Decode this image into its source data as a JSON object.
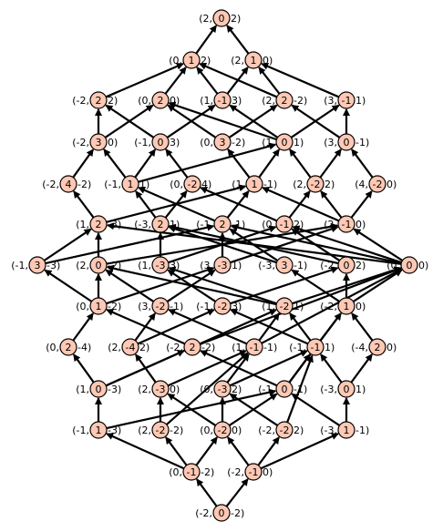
{
  "colors": {
    "node_fill": "#ffc8b4",
    "edge": "#000000",
    "background": "#ffffff"
  },
  "nodes": [
    {
      "id": "n00",
      "left": "(2,",
      "center": "0",
      "right": "2)"
    },
    {
      "id": "n01",
      "left": "(0,",
      "center": "1",
      "right": "2)"
    },
    {
      "id": "n02",
      "left": "(2,",
      "center": "1",
      "right": "0)"
    },
    {
      "id": "n03",
      "left": "(-2,",
      "center": "2",
      "right": "2)"
    },
    {
      "id": "n04",
      "left": "(0,",
      "center": "2",
      "right": "0)"
    },
    {
      "id": "n05",
      "left": "(1,",
      "center": "-1",
      "right": "3)"
    },
    {
      "id": "n06",
      "left": "(2,",
      "center": "2",
      "right": "-2)"
    },
    {
      "id": "n07",
      "left": "(3,",
      "center": "-1",
      "right": "1)"
    },
    {
      "id": "n08",
      "left": "(-2,",
      "center": "3",
      "right": "0)"
    },
    {
      "id": "n09",
      "left": "(-1,",
      "center": "0",
      "right": "3)"
    },
    {
      "id": "n10",
      "left": "(0,",
      "center": "3",
      "right": "-2)"
    },
    {
      "id": "n11",
      "left": "(1,",
      "center": "0",
      "right": "1)"
    },
    {
      "id": "n12",
      "left": "(3,",
      "center": "0",
      "right": "-1)"
    },
    {
      "id": "n13",
      "left": "(-2,",
      "center": "4",
      "right": "-2)"
    },
    {
      "id": "n14",
      "left": "(-1,",
      "center": "1",
      "right": "1)"
    },
    {
      "id": "n15",
      "left": "(0,",
      "center": "-2",
      "right": "4)"
    },
    {
      "id": "n16",
      "left": "(1,",
      "center": "1",
      "right": "-1)"
    },
    {
      "id": "n17",
      "left": "(2,",
      "center": "-2",
      "right": "2)"
    },
    {
      "id": "n18",
      "left": "(4,",
      "center": "-2",
      "right": "0)"
    },
    {
      "id": "n19",
      "left": "(1,",
      "center": "2",
      "right": "-3)"
    },
    {
      "id": "n20",
      "left": "(-3,",
      "center": "2",
      "right": "1)"
    },
    {
      "id": "n21",
      "left": "(-1,",
      "center": "2",
      "right": "-1)"
    },
    {
      "id": "n22",
      "left": "(0,",
      "center": "-1",
      "right": "2)"
    },
    {
      "id": "n23",
      "left": "(2,",
      "center": "-1",
      "right": "0)"
    },
    {
      "id": "n24",
      "left": "(-1,",
      "center": "3",
      "right": "-3)"
    },
    {
      "id": "n25",
      "left": "(2,",
      "center": "0",
      "right": "-2)"
    },
    {
      "id": "n26",
      "left": "(1,",
      "center": "-3",
      "right": "3)"
    },
    {
      "id": "n27",
      "left": "(3,",
      "center": "-3",
      "right": "1)"
    },
    {
      "id": "n28",
      "left": "(-3,",
      "center": "3",
      "right": "-1)"
    },
    {
      "id": "n29",
      "left": "(-2,",
      "center": "0",
      "right": "2)"
    },
    {
      "id": "n30",
      "left": "(0,",
      "center": "0",
      "right": "0)"
    },
    {
      "id": "n31",
      "left": "(0,",
      "center": "1",
      "right": "-2)"
    },
    {
      "id": "n32",
      "left": "(3,",
      "center": "-2",
      "right": "-1)"
    },
    {
      "id": "n33",
      "left": "(-1,",
      "center": "-2",
      "right": "3)"
    },
    {
      "id": "n34",
      "left": "(1,",
      "center": "-2",
      "right": "1)"
    },
    {
      "id": "n35",
      "left": "(-2,",
      "center": "1",
      "right": "0)"
    },
    {
      "id": "n36",
      "left": "(0,",
      "center": "2",
      "right": "-4)"
    },
    {
      "id": "n37",
      "left": "(2,",
      "center": "-4",
      "right": "2)"
    },
    {
      "id": "n38",
      "left": "(-2,",
      "center": "2",
      "right": "-2)"
    },
    {
      "id": "n39",
      "left": "(1,",
      "center": "-1",
      "right": "-1)"
    },
    {
      "id": "n40",
      "left": "(-1,",
      "center": "-1",
      "right": "1)"
    },
    {
      "id": "n41",
      "left": "(-4,",
      "center": "2",
      "right": "0)"
    },
    {
      "id": "n42",
      "left": "(1,",
      "center": "0",
      "right": "-3)"
    },
    {
      "id": "n43",
      "left": "(2,",
      "center": "-3",
      "right": "0)"
    },
    {
      "id": "n44",
      "left": "(0,",
      "center": "-3",
      "right": "2)"
    },
    {
      "id": "n45",
      "left": "(-1,",
      "center": "0",
      "right": "-1)"
    },
    {
      "id": "n46",
      "left": "(-3,",
      "center": "0",
      "right": "1)"
    },
    {
      "id": "n47",
      "left": "(-1,",
      "center": "1",
      "right": "-3)"
    },
    {
      "id": "n48",
      "left": "(2,",
      "center": "-2",
      "right": "-2)"
    },
    {
      "id": "n49",
      "left": "(0,",
      "center": "-2",
      "right": "0)"
    },
    {
      "id": "n50",
      "left": "(-2,",
      "center": "-2",
      "right": "2)"
    },
    {
      "id": "n51",
      "left": "(-3,",
      "center": "1",
      "right": "-1)"
    },
    {
      "id": "n52",
      "left": "(0,",
      "center": "-1",
      "right": "-2)"
    },
    {
      "id": "n53",
      "left": "(-2,",
      "center": "-1",
      "right": "0)"
    },
    {
      "id": "n54",
      "left": "(-2,",
      "center": "0",
      "right": "-2)"
    }
  ],
  "edges": [
    [
      "n54",
      "n52"
    ],
    [
      "n54",
      "n53"
    ],
    [
      "n52",
      "n47"
    ],
    [
      "n52",
      "n48"
    ],
    [
      "n52",
      "n49"
    ],
    [
      "n53",
      "n49"
    ],
    [
      "n53",
      "n50"
    ],
    [
      "n53",
      "n51"
    ],
    [
      "n47",
      "n42"
    ],
    [
      "n47",
      "n45"
    ],
    [
      "n48",
      "n43"
    ],
    [
      "n48",
      "n39"
    ],
    [
      "n49",
      "n43"
    ],
    [
      "n49",
      "n44"
    ],
    [
      "n49",
      "n45"
    ],
    [
      "n50",
      "n44"
    ],
    [
      "n50",
      "n40"
    ],
    [
      "n51",
      "n45"
    ],
    [
      "n51",
      "n46"
    ],
    [
      "n42",
      "n36"
    ],
    [
      "n42",
      "n38"
    ],
    [
      "n42",
      "n34"
    ],
    [
      "n43",
      "n37"
    ],
    [
      "n43",
      "n39"
    ],
    [
      "n44",
      "n39"
    ],
    [
      "n44",
      "n40"
    ],
    [
      "n45",
      "n38"
    ],
    [
      "n45",
      "n40"
    ],
    [
      "n45",
      "n35"
    ],
    [
      "n46",
      "n40"
    ],
    [
      "n46",
      "n41"
    ],
    [
      "n36",
      "n31"
    ],
    [
      "n37",
      "n32"
    ],
    [
      "n37",
      "n33"
    ],
    [
      "n38",
      "n31"
    ],
    [
      "n38",
      "n30"
    ],
    [
      "n39",
      "n32"
    ],
    [
      "n39",
      "n30"
    ],
    [
      "n39",
      "n34"
    ],
    [
      "n40",
      "n33"
    ],
    [
      "n40",
      "n34"
    ],
    [
      "n40",
      "n35"
    ],
    [
      "n41",
      "n35"
    ],
    [
      "n31",
      "n24"
    ],
    [
      "n31",
      "n25"
    ],
    [
      "n31",
      "n27"
    ],
    [
      "n32",
      "n25"
    ],
    [
      "n32",
      "n27"
    ],
    [
      "n33",
      "n26"
    ],
    [
      "n33",
      "n29"
    ],
    [
      "n34",
      "n25"
    ],
    [
      "n34",
      "n26"
    ],
    [
      "n34",
      "n30"
    ],
    [
      "n35",
      "n28"
    ],
    [
      "n35",
      "n29"
    ],
    [
      "n35",
      "n30"
    ],
    [
      "n24",
      "n19"
    ],
    [
      "n24",
      "n21"
    ],
    [
      "n25",
      "n19"
    ],
    [
      "n25",
      "n23"
    ],
    [
      "n26",
      "n22"
    ],
    [
      "n26",
      "n20"
    ],
    [
      "n27",
      "n23"
    ],
    [
      "n27",
      "n21"
    ],
    [
      "n28",
      "n20"
    ],
    [
      "n28",
      "n21"
    ],
    [
      "n29",
      "n20"
    ],
    [
      "n29",
      "n22"
    ],
    [
      "n30",
      "n19"
    ],
    [
      "n30",
      "n21"
    ],
    [
      "n30",
      "n22"
    ],
    [
      "n30",
      "n23"
    ],
    [
      "n19",
      "n13"
    ],
    [
      "n19",
      "n16"
    ],
    [
      "n20",
      "n14"
    ],
    [
      "n20",
      "n15"
    ],
    [
      "n21",
      "n14"
    ],
    [
      "n21",
      "n16"
    ],
    [
      "n22",
      "n15"
    ],
    [
      "n22",
      "n17"
    ],
    [
      "n23",
      "n16"
    ],
    [
      "n23",
      "n17"
    ],
    [
      "n23",
      "n18"
    ],
    [
      "n13",
      "n08"
    ],
    [
      "n14",
      "n08"
    ],
    [
      "n14",
      "n09"
    ],
    [
      "n14",
      "n11"
    ],
    [
      "n15",
      "n09"
    ],
    [
      "n16",
      "n10"
    ],
    [
      "n16",
      "n11"
    ],
    [
      "n17",
      "n11"
    ],
    [
      "n17",
      "n12"
    ],
    [
      "n18",
      "n12"
    ],
    [
      "n08",
      "n03"
    ],
    [
      "n08",
      "n04"
    ],
    [
      "n09",
      "n03"
    ],
    [
      "n09",
      "n05"
    ],
    [
      "n10",
      "n04"
    ],
    [
      "n10",
      "n06"
    ],
    [
      "n11",
      "n04"
    ],
    [
      "n11",
      "n05"
    ],
    [
      "n11",
      "n07"
    ],
    [
      "n12",
      "n06"
    ],
    [
      "n12",
      "n07"
    ],
    [
      "n03",
      "n01"
    ],
    [
      "n04",
      "n01"
    ],
    [
      "n05",
      "n01"
    ],
    [
      "n05",
      "n02"
    ],
    [
      "n06",
      "n01"
    ],
    [
      "n06",
      "n02"
    ],
    [
      "n07",
      "n02"
    ],
    [
      "n01",
      "n00"
    ],
    [
      "n02",
      "n00"
    ]
  ]
}
